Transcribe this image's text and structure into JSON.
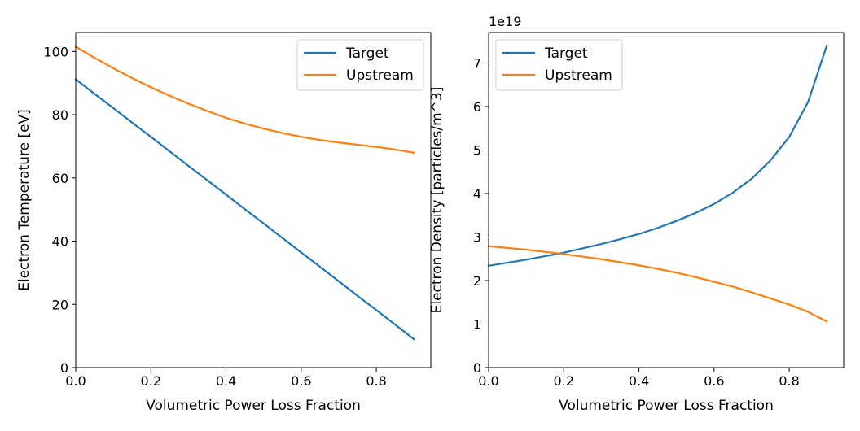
{
  "chart_data": [
    {
      "type": "line",
      "xlabel": "Volumetric Power Loss Fraction",
      "ylabel": "Electron Temperature [eV]",
      "xlim": [
        0,
        0.945
      ],
      "ylim": [
        0,
        106
      ],
      "xticks": [
        0.0,
        0.2,
        0.4,
        0.6,
        0.8
      ],
      "xtick_labels": [
        "0.0",
        "0.2",
        "0.4",
        "0.6",
        "0.8"
      ],
      "yticks": [
        0,
        20,
        40,
        60,
        80,
        100
      ],
      "ytick_labels": [
        "0",
        "20",
        "40",
        "60",
        "80",
        "100"
      ],
      "grid": false,
      "legend_position": "upper-right",
      "x": [
        0.0,
        0.05,
        0.1,
        0.15,
        0.2,
        0.25,
        0.3,
        0.35,
        0.4,
        0.45,
        0.5,
        0.55,
        0.6,
        0.65,
        0.7,
        0.75,
        0.8,
        0.85,
        0.9
      ],
      "series": [
        {
          "name": "Target",
          "color": "#1f77b4",
          "values": [
            91.2,
            86.6,
            82.1,
            77.5,
            73.0,
            68.4,
            63.8,
            59.3,
            54.7,
            50.1,
            45.6,
            41.0,
            36.4,
            31.9,
            27.3,
            22.7,
            18.2,
            13.6,
            9.0
          ]
        },
        {
          "name": "Upstream",
          "color": "#ff7f0e",
          "values": [
            101.5,
            98.0,
            94.7,
            91.6,
            88.7,
            86.0,
            83.5,
            81.2,
            79.0,
            77.2,
            75.6,
            74.2,
            73.0,
            72.0,
            71.2,
            70.5,
            69.8,
            69.0,
            68.0
          ]
        }
      ]
    },
    {
      "type": "line",
      "xlabel": "Volumetric Power Loss Fraction",
      "ylabel": "Electron Density [particles/m^3]",
      "offset_text": "1e19",
      "xlim": [
        0,
        0.945
      ],
      "ylim": [
        0,
        7.7
      ],
      "xticks": [
        0.0,
        0.2,
        0.4,
        0.6,
        0.8
      ],
      "xtick_labels": [
        "0.0",
        "0.2",
        "0.4",
        "0.6",
        "0.8"
      ],
      "yticks": [
        0,
        1,
        2,
        3,
        4,
        5,
        6,
        7
      ],
      "ytick_labels": [
        "0",
        "1",
        "2",
        "3",
        "4",
        "5",
        "6",
        "7"
      ],
      "grid": false,
      "legend_position": "upper-left",
      "x": [
        0.0,
        0.05,
        0.1,
        0.15,
        0.2,
        0.25,
        0.3,
        0.35,
        0.4,
        0.45,
        0.5,
        0.55,
        0.6,
        0.65,
        0.7,
        0.75,
        0.8,
        0.85,
        0.9
      ],
      "series": [
        {
          "name": "Target",
          "color": "#1f77b4",
          "values": [
            2.34,
            2.41,
            2.48,
            2.56,
            2.64,
            2.74,
            2.84,
            2.95,
            3.07,
            3.21,
            3.37,
            3.55,
            3.76,
            4.02,
            4.34,
            4.76,
            5.3,
            6.1,
            7.4
          ]
        },
        {
          "name": "Upstream",
          "color": "#ff7f0e",
          "values": [
            2.79,
            2.75,
            2.71,
            2.66,
            2.61,
            2.55,
            2.49,
            2.42,
            2.35,
            2.27,
            2.18,
            2.08,
            1.97,
            1.86,
            1.73,
            1.59,
            1.45,
            1.28,
            1.06
          ]
        }
      ]
    }
  ]
}
